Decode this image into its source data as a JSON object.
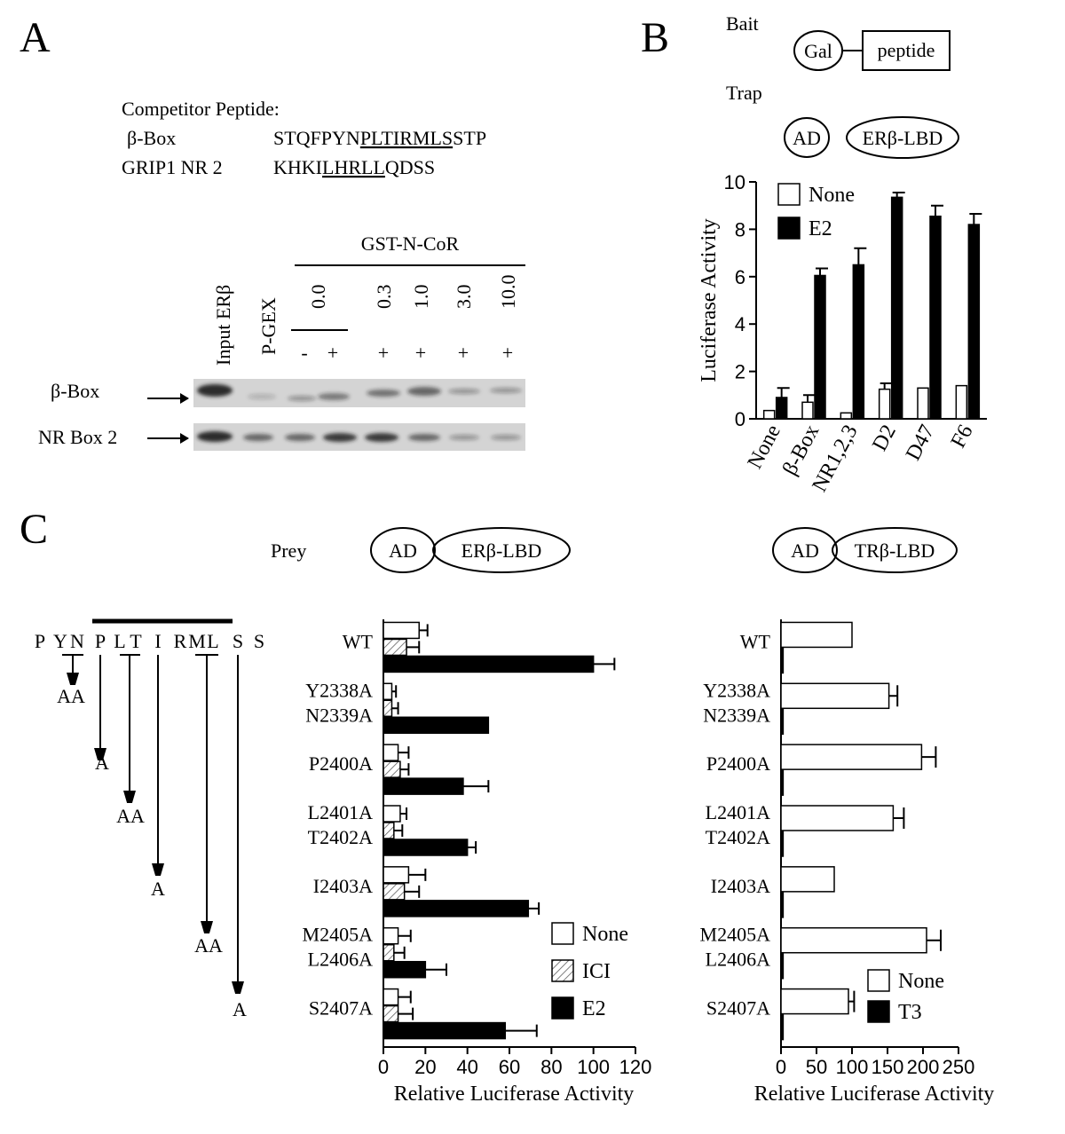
{
  "panel_labels": [
    "A",
    "B",
    "C"
  ],
  "panel_a": {
    "competitor_title": "Competitor Peptide:",
    "peptides": [
      {
        "name": "β-Box",
        "seq_pre": "STQFPYN",
        "seq_underline": "PLTIRMLS",
        "seq_post": "STP"
      },
      {
        "name": "GRIP1 NR 2",
        "seq_pre": "KHKI",
        "seq_underline": "LHRLL",
        "seq_post": "QDSS"
      }
    ],
    "gst_label": "GST-N-CoR",
    "lanes": [
      "Input ERβ",
      "P-GEX"
    ],
    "concentrations": [
      "0.0",
      "0.3",
      "1.0",
      "3.0",
      "10.0"
    ],
    "signs": [
      "-",
      "+",
      "+",
      "+",
      "+",
      "+"
    ],
    "rows": [
      "β-Box",
      "NR Box 2"
    ]
  },
  "panel_b_diagram": {
    "bait": "Bait",
    "gal": "Gal",
    "peptide": "peptide",
    "trap": "Trap",
    "ad": "AD",
    "lbd": "ERβ-LBD"
  },
  "panel_c_diagram": {
    "prey": "Prey",
    "ad1": "AD",
    "lbd1": "ERβ-LBD",
    "ad2": "AD",
    "lbd2": "TRβ-LBD",
    "sequence": [
      "P",
      "Y",
      "N",
      "P",
      "L",
      "T",
      "I",
      "R",
      "M",
      "L",
      "S",
      "S"
    ],
    "mutations": [
      "AA",
      "A",
      "AA",
      "A",
      "AA",
      "A"
    ]
  },
  "chart_data": [
    {
      "type": "bar",
      "orientation": "vertical",
      "ylabel": "Luciferase Activity",
      "categories": [
        "None",
        "β-Box",
        "NR1,2,3",
        "D2",
        "D47",
        "F6"
      ],
      "series": [
        {
          "name": "None",
          "color": "#ffffff",
          "values": [
            0.35,
            0.7,
            0.25,
            1.25,
            1.3,
            1.4
          ],
          "errors": [
            null,
            0.3,
            null,
            0.25,
            null,
            null
          ]
        },
        {
          "name": "E2",
          "color": "#000000",
          "values": [
            0.9,
            6.05,
            6.5,
            9.35,
            8.55,
            8.2
          ],
          "errors": [
            0.4,
            0.3,
            0.7,
            0.2,
            0.45,
            0.45
          ]
        }
      ],
      "ylim": [
        0,
        10
      ],
      "yticks": [
        0,
        2,
        4,
        6,
        8,
        10
      ],
      "legend": "upper left"
    },
    {
      "type": "bar",
      "orientation": "horizontal",
      "xlabel": "Relative Luciferase Activity",
      "categories": [
        [
          "WT"
        ],
        [
          "Y2338A",
          "N2339A"
        ],
        [
          "P2400A"
        ],
        [
          "L2401A",
          "T2402A"
        ],
        [
          "I2403A"
        ],
        [
          "M2405A",
          "L2406A"
        ],
        [
          "S2407A"
        ]
      ],
      "series": [
        {
          "name": "None",
          "color": "#ffffff",
          "values": [
            17,
            4,
            7,
            8,
            12,
            7,
            7
          ],
          "errors": [
            4,
            2,
            5,
            3,
            8,
            6,
            6
          ]
        },
        {
          "name": "ICI",
          "color": "#555555",
          "hatch": true,
          "values": [
            11,
            4,
            8,
            5,
            10,
            5,
            7
          ],
          "errors": [
            6,
            3,
            4,
            4,
            7,
            5,
            7
          ]
        },
        {
          "name": "E2",
          "color": "#000000",
          "values": [
            100,
            50,
            38,
            40,
            69,
            20,
            58
          ],
          "errors": [
            10,
            null,
            12,
            4,
            5,
            10,
            15
          ]
        }
      ],
      "xlim": [
        0,
        120
      ],
      "xticks": [
        0,
        20,
        40,
        60,
        80,
        100,
        120
      ],
      "legend": "lower right"
    },
    {
      "type": "bar",
      "orientation": "horizontal",
      "xlabel": "Relative Luciferase Activity",
      "categories": [
        [
          "WT"
        ],
        [
          "Y2338A",
          "N2339A"
        ],
        [
          "P2400A"
        ],
        [
          "L2401A",
          "T2402A"
        ],
        [
          "I2403A"
        ],
        [
          "M2405A",
          "L2406A"
        ],
        [
          "S2407A"
        ]
      ],
      "series": [
        {
          "name": "None",
          "color": "#ffffff",
          "values": [
            100,
            152,
            198,
            158,
            75,
            205,
            95
          ],
          "errors": [
            null,
            12,
            20,
            15,
            null,
            20,
            8
          ]
        },
        {
          "name": "T3",
          "color": "#000000",
          "values": [
            3,
            3,
            3,
            3,
            3,
            3,
            3
          ],
          "errors": [
            null,
            null,
            null,
            null,
            null,
            null,
            null
          ]
        }
      ],
      "xlim": [
        0,
        250
      ],
      "xticks": [
        0,
        50,
        100,
        150,
        200,
        250
      ],
      "legend": "lower right"
    }
  ]
}
